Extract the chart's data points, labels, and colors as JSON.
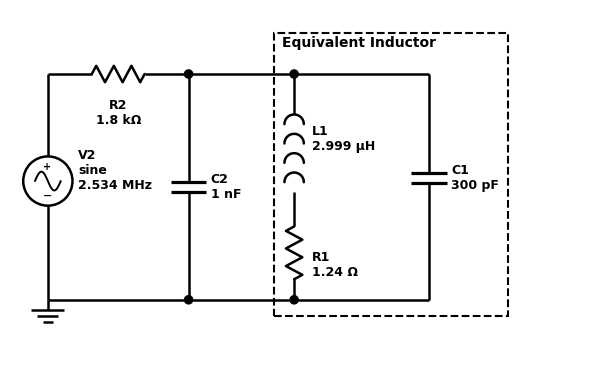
{
  "title": "Equivalent Inductor",
  "labels": {
    "V2": "V2\nsine\n2.534 MHz",
    "R2": "R2\n1.8 kΩ",
    "C2": "C2\n1 nF",
    "L1": "L1\n2.999 μH",
    "R1": "R1\n1.24 Ω",
    "C1": "C1\n300 pF"
  },
  "line_color": "#000000",
  "bg_color": "#ffffff",
  "line_width": 1.8,
  "font_size": 9,
  "title_font_size": 10,
  "figsize": [
    6.0,
    3.65
  ],
  "dpi": 100,
  "xlim": [
    0,
    10
  ],
  "ylim": [
    0,
    6.1
  ]
}
